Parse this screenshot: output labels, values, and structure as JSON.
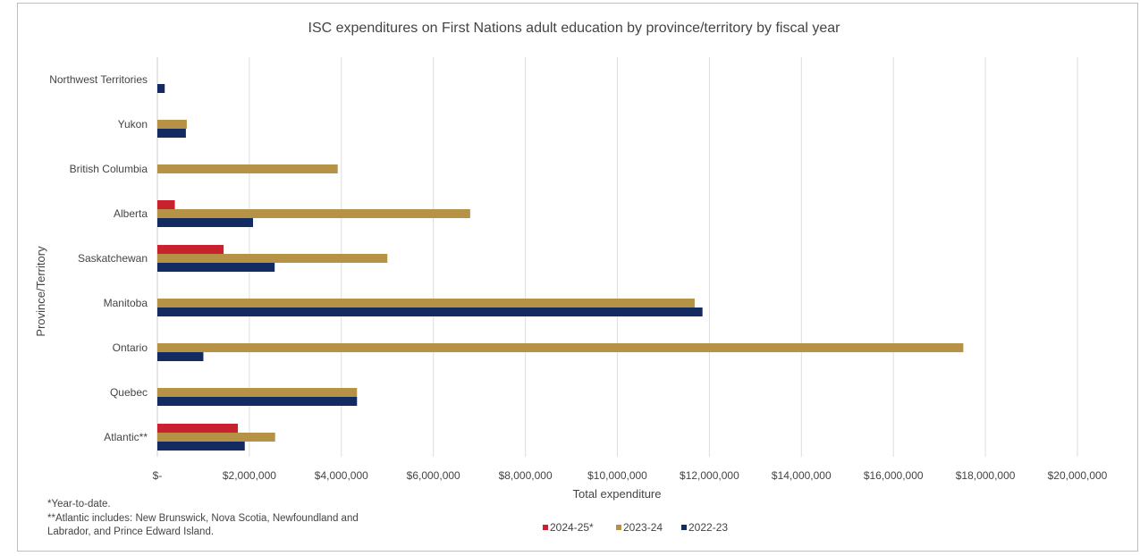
{
  "chart_data": {
    "type": "bar",
    "orientation": "horizontal",
    "title": "ISC expenditures on First Nations adult education by province/territory by fiscal year",
    "xlabel": "Total expenditure",
    "ylabel": "Province/Territory",
    "categories": [
      "Northwest Territories",
      "Yukon",
      "British Columbia",
      "Alberta",
      "Saskatchewan",
      "Manitoba",
      "Ontario",
      "Quebec",
      "Atlantic**"
    ],
    "series": [
      {
        "name": "2024-25*",
        "color": "#c8222e",
        "values": [
          0,
          0,
          0,
          380000,
          1440000,
          0,
          0,
          0,
          1750000
        ]
      },
      {
        "name": "2023-24",
        "color": "#b69247",
        "values": [
          0,
          640000,
          3920000,
          6800000,
          5000000,
          11680000,
          17520000,
          4340000,
          2560000
        ]
      },
      {
        "name": "2022-23",
        "color": "#142b61",
        "values": [
          160000,
          620000,
          0,
          2080000,
          2550000,
          11850000,
          1000000,
          4340000,
          1900000
        ]
      }
    ],
    "xlim": [
      0,
      20000000
    ],
    "xticks": [
      0,
      2000000,
      4000000,
      6000000,
      8000000,
      10000000,
      12000000,
      14000000,
      16000000,
      18000000,
      20000000
    ],
    "xtick_labels": [
      "$-",
      "$2,000,000",
      "$4,000,000",
      "$6,000,000",
      "$8,000,000",
      "$10,000,000",
      "$12,000,000",
      "$14,000,000",
      "$16,000,000",
      "$18,000,000",
      "$20,000,000"
    ],
    "grid": "vertical",
    "legend_position": "bottom"
  },
  "notes": [
    "*Year-to-date.",
    "**Atlantic includes: New Brunswick, Nova Scotia, Newfoundland and",
    "Labrador, and Prince Edward Island."
  ]
}
